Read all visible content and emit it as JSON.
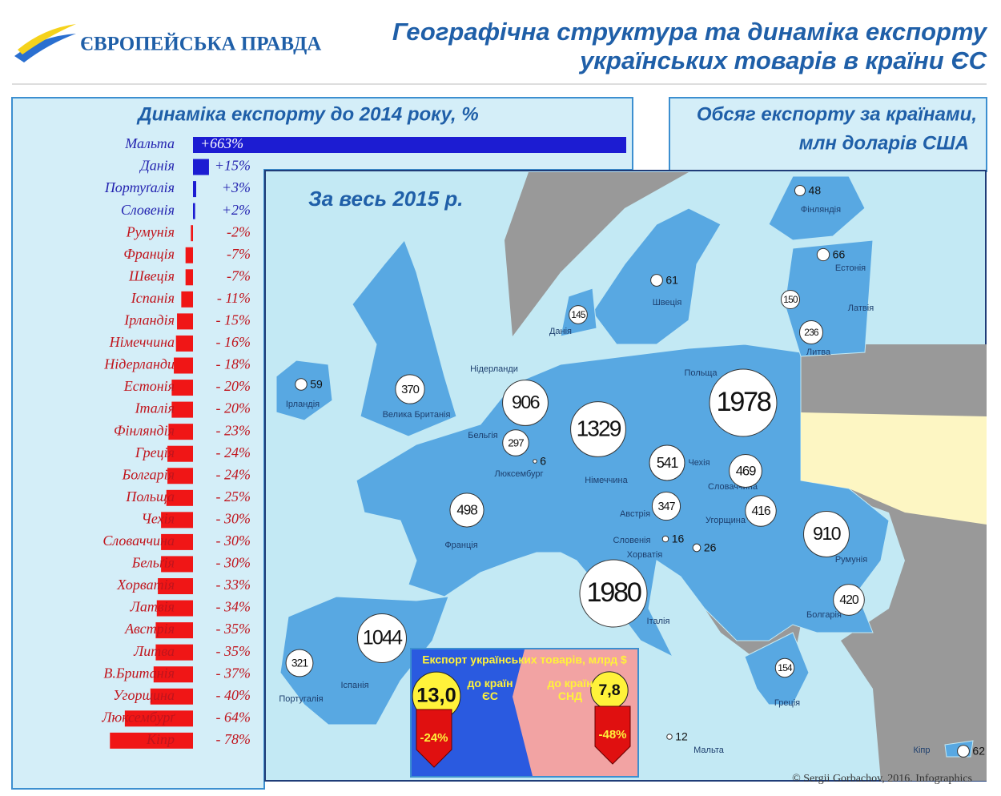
{
  "header": {
    "logo": "ЄВРОПЕЙСЬКА ПРАВДА",
    "title_lines": [
      "Географічна структура та динаміка експорту",
      "українських товарів в країни ЄС"
    ],
    "credit": "© Sergii Gorbachov, 2016. Infographics"
  },
  "chart_data": [
    {
      "type": "bar",
      "orientation": "horizontal",
      "title": "Динаміка експорту до 2014 року, %",
      "categories": [
        "Мальта",
        "Данія",
        "Портуґалія",
        "Словенія",
        "Румунія",
        "Франція",
        "Швеція",
        "Іспанія",
        "Ірландія",
        "Німеччина",
        "Нідерланди",
        "Естонія",
        "Італія",
        "Фінляндія",
        "Греція",
        "Болгарія",
        "Польща",
        "Чехія",
        "Словаччина",
        "Бельґія",
        "Хорватія",
        "Латвія",
        "Австрія",
        "Литва",
        "В.Британія",
        "Угорщина",
        "Люксембурґ",
        "Кіпр"
      ],
      "values": [
        663,
        15,
        3,
        2,
        -2,
        -7,
        -7,
        -11,
        -15,
        -16,
        -18,
        -20,
        -20,
        -23,
        -24,
        -24,
        -25,
        -30,
        -30,
        -30,
        -33,
        -34,
        -35,
        -35,
        -37,
        -40,
        -64,
        -78
      ],
      "value_labels": [
        "+663%",
        "+15%",
        "+3%",
        "+2%",
        "-2%",
        "-7%",
        "-7%",
        "- 11%",
        "- 15%",
        "- 16%",
        "- 18%",
        "- 20%",
        "- 20%",
        "- 23%",
        "- 24%",
        "- 24%",
        "- 25%",
        "- 30%",
        "- 30%",
        "- 30%",
        "- 33%",
        "- 34%",
        "- 35%",
        "- 35%",
        "- 37%",
        "- 40%",
        "- 64%",
        "- 78%"
      ],
      "positive_color": "#1c1cd2",
      "negative_color": "#f01616"
    },
    {
      "type": "bubble-map",
      "title_lines": [
        "Обсяг експорту за країнами,",
        "млн доларів США"
      ],
      "subtitle": "За весь 2015 р.",
      "categories": [
        "Фінляндія",
        "Естонія",
        "Латвія",
        "Литва",
        "Швеція",
        "Данія",
        "Польща",
        "Ірландія",
        "Велика Британія",
        "Нідерланди",
        "Бельгія",
        "Люксембург",
        "Німеччина",
        "Чехія",
        "Словаччина",
        "Австрія",
        "Угорщина",
        "Франція",
        "Словенія",
        "Хорватія",
        "Румунія",
        "Італія",
        "Болгарія",
        "Іспанія",
        "Португалія",
        "Греція",
        "Мальта",
        "Кіпр"
      ],
      "values": [
        48,
        66,
        150,
        236,
        61,
        145,
        1978,
        59,
        370,
        906,
        297,
        6,
        1329,
        541,
        469,
        347,
        416,
        498,
        16,
        26,
        910,
        1980,
        420,
        1044,
        321,
        154,
        12,
        62
      ],
      "color": "#ffffff"
    },
    {
      "type": "bubble",
      "title": "Експорт українських товарів, млрд $",
      "categories": [
        "до країн ЄС",
        "до країн СНД"
      ],
      "values": [
        13.0,
        7.8
      ],
      "value_labels": [
        "13,0",
        "7,8"
      ],
      "changes": [
        -24,
        -48
      ],
      "change_labels": [
        "-24%",
        "-48%"
      ],
      "color": "#fff23a"
    }
  ]
}
